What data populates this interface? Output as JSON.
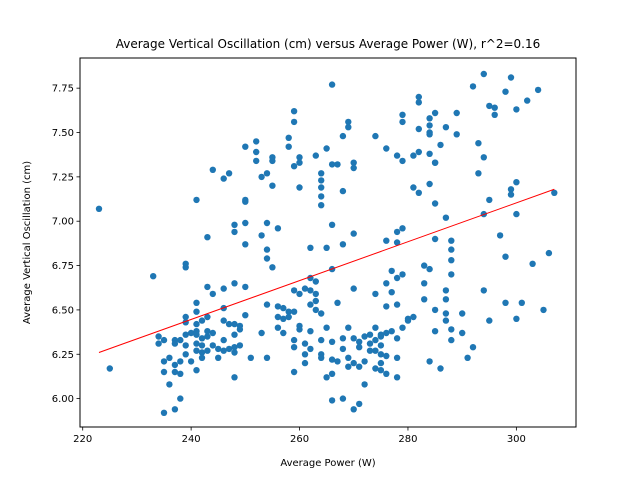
{
  "chart_data": {
    "type": "scatter",
    "title": "Average Vertical Oscillation (cm) versus Average Power (W), r^2=0.16",
    "xlabel": "Average Power (W)",
    "ylabel": "Average Vertical Oscillation (cm)",
    "xlim": [
      219.5,
      311
    ],
    "ylim": [
      5.84,
      7.92
    ],
    "x_ticks": [
      220,
      240,
      260,
      280,
      300
    ],
    "x_tick_labels": [
      "220",
      "240",
      "260",
      "280",
      "300"
    ],
    "y_ticks": [
      6.0,
      6.25,
      6.5,
      6.75,
      7.0,
      7.25,
      7.5,
      7.75
    ],
    "y_tick_labels": [
      "6.00",
      "6.25",
      "6.50",
      "6.75",
      "7.00",
      "7.25",
      "7.50",
      "7.75"
    ],
    "grid": false,
    "colors": {
      "points": "#1f77b4",
      "trendline": "#ff0000"
    },
    "trendline": {
      "x": [
        223,
        307
      ],
      "y": [
        6.26,
        7.18
      ]
    },
    "series": [
      {
        "points": [
          [
            223,
            7.07
          ],
          [
            225,
            6.17
          ],
          [
            233,
            6.69
          ],
          [
            234,
            6.35
          ],
          [
            234,
            6.31
          ],
          [
            235,
            6.33
          ],
          [
            235,
            6.21
          ],
          [
            235,
            6.15
          ],
          [
            235,
            5.92
          ],
          [
            236,
            6.23
          ],
          [
            236,
            6.08
          ],
          [
            237,
            6.33
          ],
          [
            237,
            6.31
          ],
          [
            237,
            6.19
          ],
          [
            237,
            6.15
          ],
          [
            237,
            5.94
          ],
          [
            238,
            6.33
          ],
          [
            238,
            6.21
          ],
          [
            238,
            6.14
          ],
          [
            238,
            6.0
          ],
          [
            239,
            6.76
          ],
          [
            239,
            6.74
          ],
          [
            239,
            6.46
          ],
          [
            239,
            6.43
          ],
          [
            239,
            6.36
          ],
          [
            239,
            6.3
          ],
          [
            239,
            6.25
          ],
          [
            240,
            6.37
          ],
          [
            240,
            6.21
          ],
          [
            241,
            6.54
          ],
          [
            241,
            6.49
          ],
          [
            241,
            6.42
          ],
          [
            241,
            6.38
          ],
          [
            241,
            6.36
          ],
          [
            241,
            6.31
          ],
          [
            241,
            6.27
          ],
          [
            241,
            6.16
          ],
          [
            241,
            7.12
          ],
          [
            242,
            6.44
          ],
          [
            242,
            6.34
          ],
          [
            242,
            6.3
          ],
          [
            242,
            6.26
          ],
          [
            242,
            6.23
          ],
          [
            243,
            6.46
          ],
          [
            243,
            6.38
          ],
          [
            243,
            6.35
          ],
          [
            243,
            6.27
          ],
          [
            243,
            6.63
          ],
          [
            243,
            6.91
          ],
          [
            244,
            7.29
          ],
          [
            244,
            6.59
          ],
          [
            244,
            6.37
          ],
          [
            244,
            6.3
          ],
          [
            245,
            6.28
          ],
          [
            245,
            6.23
          ],
          [
            246,
            7.24
          ],
          [
            246,
            6.62
          ],
          [
            246,
            6.51
          ],
          [
            246,
            6.44
          ],
          [
            246,
            6.33
          ],
          [
            246,
            6.27
          ],
          [
            247,
            7.27
          ],
          [
            247,
            6.42
          ],
          [
            247,
            6.28
          ],
          [
            248,
            6.98
          ],
          [
            248,
            6.94
          ],
          [
            248,
            6.65
          ],
          [
            248,
            6.42
          ],
          [
            248,
            6.36
          ],
          [
            248,
            6.29
          ],
          [
            248,
            6.26
          ],
          [
            248,
            6.12
          ],
          [
            249,
            6.41
          ],
          [
            249,
            6.39
          ],
          [
            249,
            6.3
          ],
          [
            250,
            6.47
          ],
          [
            250,
            6.87
          ],
          [
            250,
            7.11
          ],
          [
            250,
            7.12
          ],
          [
            250,
            7.42
          ],
          [
            250,
            6.99
          ],
          [
            250,
            6.63
          ],
          [
            251,
            6.23
          ],
          [
            252,
            7.45
          ],
          [
            252,
            7.39
          ],
          [
            252,
            7.34
          ],
          [
            253,
            7.25
          ],
          [
            253,
            6.92
          ],
          [
            253,
            6.37
          ],
          [
            254,
            7.27
          ],
          [
            254,
            6.99
          ],
          [
            254,
            6.84
          ],
          [
            254,
            6.79
          ],
          [
            254,
            6.53
          ],
          [
            254,
            6.23
          ],
          [
            255,
            7.34
          ],
          [
            255,
            7.36
          ],
          [
            255,
            7.2
          ],
          [
            255,
            6.74
          ],
          [
            256,
            6.96
          ],
          [
            256,
            6.52
          ],
          [
            256,
            6.46
          ],
          [
            256,
            6.4
          ],
          [
            257,
            6.51
          ],
          [
            257,
            6.45
          ],
          [
            257,
            6.37
          ],
          [
            258,
            6.46
          ],
          [
            258,
            7.47
          ],
          [
            258,
            7.42
          ],
          [
            258,
            6.49
          ],
          [
            259,
            7.56
          ],
          [
            259,
            7.62
          ],
          [
            259,
            7.31
          ],
          [
            259,
            6.61
          ],
          [
            259,
            6.49
          ],
          [
            259,
            6.33
          ],
          [
            259,
            6.29
          ],
          [
            259,
            6.15
          ],
          [
            260,
            7.19
          ],
          [
            260,
            7.33
          ],
          [
            260,
            7.36
          ],
          [
            260,
            6.59
          ],
          [
            260,
            6.41
          ],
          [
            260,
            6.39
          ],
          [
            261,
            6.62
          ],
          [
            261,
            6.31
          ],
          [
            261,
            6.25
          ],
          [
            261,
            6.2
          ],
          [
            262,
            6.85
          ],
          [
            262,
            6.68
          ],
          [
            262,
            6.61
          ],
          [
            262,
            6.53
          ],
          [
            262,
            6.38
          ],
          [
            262,
            6.28
          ],
          [
            263,
            6.66
          ],
          [
            263,
            6.59
          ],
          [
            263,
            6.55
          ],
          [
            263,
            6.5
          ],
          [
            263,
            7.37
          ],
          [
            264,
            7.27
          ],
          [
            264,
            7.23
          ],
          [
            264,
            7.19
          ],
          [
            264,
            7.14
          ],
          [
            264,
            7.09
          ],
          [
            264,
            6.48
          ],
          [
            264,
            6.33
          ],
          [
            264,
            6.25
          ],
          [
            264,
            6.23
          ],
          [
            265,
            7.41
          ],
          [
            265,
            6.85
          ],
          [
            265,
            6.4
          ],
          [
            265,
            6.12
          ],
          [
            266,
            7.32
          ],
          [
            266,
            7.77
          ],
          [
            266,
            6.98
          ],
          [
            266,
            6.73
          ],
          [
            266,
            6.32
          ],
          [
            266,
            6.22
          ],
          [
            266,
            6.14
          ],
          [
            266,
            5.99
          ],
          [
            267,
            7.32
          ],
          [
            267,
            6.54
          ],
          [
            267,
            6.21
          ],
          [
            268,
            7.48
          ],
          [
            268,
            7.17
          ],
          [
            268,
            6.87
          ],
          [
            268,
            6.34
          ],
          [
            268,
            6.28
          ],
          [
            268,
            6.0
          ],
          [
            269,
            7.56
          ],
          [
            269,
            7.53
          ],
          [
            269,
            6.4
          ],
          [
            269,
            6.23
          ],
          [
            269,
            6.18
          ],
          [
            270,
            7.33
          ],
          [
            270,
            7.3
          ],
          [
            270,
            6.93
          ],
          [
            270,
            6.62
          ],
          [
            270,
            6.34
          ],
          [
            270,
            6.2
          ],
          [
            270,
            5.94
          ],
          [
            271,
            6.32
          ],
          [
            271,
            6.29
          ],
          [
            271,
            6.18
          ],
          [
            271,
            5.97
          ],
          [
            272,
            6.35
          ],
          [
            272,
            6.21
          ],
          [
            272,
            6.08
          ],
          [
            273,
            6.36
          ],
          [
            273,
            6.31
          ],
          [
            273,
            6.27
          ],
          [
            274,
            7.48
          ],
          [
            274,
            6.59
          ],
          [
            274,
            6.4
          ],
          [
            274,
            6.33
          ],
          [
            274,
            6.27
          ],
          [
            274,
            6.17
          ],
          [
            275,
            6.35
          ],
          [
            275,
            6.36
          ],
          [
            275,
            6.3
          ],
          [
            275,
            6.25
          ],
          [
            275,
            6.2
          ],
          [
            275,
            6.16
          ],
          [
            276,
            7.41
          ],
          [
            276,
            6.89
          ],
          [
            276,
            6.65
          ],
          [
            276,
            6.52
          ],
          [
            276,
            6.37
          ],
          [
            276,
            6.24
          ],
          [
            276,
            6.14
          ],
          [
            277,
            6.72
          ],
          [
            277,
            6.6
          ],
          [
            277,
            6.38
          ],
          [
            278,
            7.37
          ],
          [
            278,
            6.94
          ],
          [
            278,
            6.88
          ],
          [
            278,
            6.68
          ],
          [
            278,
            6.53
          ],
          [
            278,
            6.34
          ],
          [
            278,
            6.23
          ],
          [
            278,
            6.12
          ],
          [
            279,
            7.56
          ],
          [
            279,
            7.6
          ],
          [
            279,
            7.34
          ],
          [
            279,
            6.96
          ],
          [
            279,
            6.7
          ],
          [
            279,
            6.4
          ],
          [
            280,
            6.45
          ],
          [
            280,
            6.44
          ],
          [
            281,
            7.37
          ],
          [
            281,
            7.19
          ],
          [
            281,
            6.46
          ],
          [
            282,
            7.7
          ],
          [
            282,
            7.67
          ],
          [
            282,
            7.52
          ],
          [
            282,
            7.16
          ],
          [
            282,
            7.39
          ],
          [
            283,
            6.56
          ],
          [
            283,
            6.65
          ],
          [
            283,
            6.75
          ],
          [
            284,
            7.5
          ],
          [
            284,
            7.54
          ],
          [
            284,
            7.58
          ],
          [
            284,
            7.49
          ],
          [
            284,
            7.38
          ],
          [
            284,
            7.21
          ],
          [
            284,
            6.73
          ],
          [
            284,
            6.21
          ],
          [
            285,
            6.9
          ],
          [
            285,
            7.61
          ],
          [
            285,
            7.33
          ],
          [
            285,
            7.33
          ],
          [
            285,
            7.1
          ],
          [
            285,
            6.5
          ],
          [
            285,
            6.38
          ],
          [
            286,
            7.43
          ],
          [
            286,
            6.17
          ],
          [
            287,
            7.53
          ],
          [
            287,
            7.02
          ],
          [
            287,
            6.61
          ],
          [
            287,
            6.56
          ],
          [
            287,
            6.48
          ],
          [
            287,
            6.44
          ],
          [
            288,
            6.89
          ],
          [
            288,
            6.84
          ],
          [
            288,
            6.78
          ],
          [
            288,
            6.7
          ],
          [
            288,
            6.39
          ],
          [
            288,
            6.33
          ],
          [
            289,
            7.61
          ],
          [
            289,
            7.49
          ],
          [
            290,
            6.37
          ],
          [
            290,
            6.48
          ],
          [
            291,
            6.23
          ],
          [
            292,
            7.76
          ],
          [
            292,
            6.29
          ],
          [
            293,
            7.44
          ],
          [
            293,
            7.27
          ],
          [
            294,
            7.36
          ],
          [
            294,
            7.83
          ],
          [
            294,
            7.04
          ],
          [
            294,
            6.61
          ],
          [
            295,
            7.12
          ],
          [
            295,
            7.65
          ],
          [
            295,
            6.44
          ],
          [
            296,
            7.6
          ],
          [
            296,
            7.64
          ],
          [
            297,
            6.92
          ],
          [
            298,
            7.73
          ],
          [
            298,
            6.8
          ],
          [
            298,
            6.54
          ],
          [
            299,
            7.81
          ],
          [
            299,
            7.18
          ],
          [
            299,
            7.15
          ],
          [
            300,
            7.22
          ],
          [
            300,
            7.63
          ],
          [
            300,
            6.45
          ],
          [
            300,
            7.04
          ],
          [
            301,
            6.54
          ],
          [
            302,
            7.68
          ],
          [
            303,
            6.76
          ],
          [
            304,
            7.74
          ],
          [
            305,
            6.5
          ],
          [
            306,
            6.82
          ],
          [
            307,
            7.16
          ]
        ]
      }
    ]
  }
}
